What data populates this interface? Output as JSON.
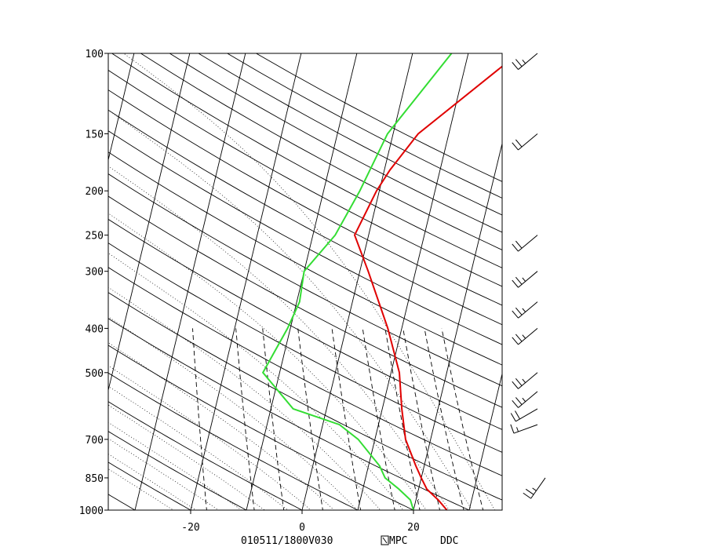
{
  "chart_data": {
    "type": "line",
    "title": "",
    "pressure_ticks": [
      "100",
      "150",
      "200",
      "250",
      "300",
      "400",
      "500",
      "700",
      "850",
      "1000"
    ],
    "pressure_levels": [
      100,
      150,
      200,
      250,
      300,
      400,
      500,
      700,
      850,
      1000
    ],
    "temp_ticks": [
      "-20",
      "0",
      "20"
    ],
    "temp_tick_values": [
      -20,
      0,
      20
    ],
    "xlim": [
      -34,
      36
    ],
    "ylim": [
      1000,
      100
    ],
    "footer": {
      "time": "010511/1800V030",
      "source": "MPC",
      "station": "DDC"
    },
    "series": [
      {
        "key": "temperature",
        "color": "#e00000",
        "p": [
          1000,
          950,
          900,
          850,
          800,
          700,
          600,
          500,
          400,
          300,
          250,
          200,
          180,
          150,
          100
        ],
        "t": [
          26,
          24,
          21.5,
          20,
          18.5,
          15.5,
          13.5,
          11.5,
          7.5,
          1.5,
          -2.5,
          -0.5,
          1,
          4.5,
          19
        ]
      },
      {
        "key": "dewpoint",
        "color": "#33dd33",
        "p": [
          1000,
          950,
          900,
          850,
          800,
          700,
          650,
          600,
          500,
          400,
          350,
          300,
          250,
          200,
          150,
          100
        ],
        "t": [
          20,
          19,
          16.5,
          13.5,
          12,
          7,
          3,
          -6,
          -13,
          -10.5,
          -9.5,
          -10,
          -6,
          -3.5,
          -1,
          7
        ]
      }
    ],
    "wind_barbs": [
      {
        "p": 100,
        "dir": 230,
        "kt": 25
      },
      {
        "p": 150,
        "dir": 230,
        "kt": 20
      },
      {
        "p": 250,
        "dir": 230,
        "kt": 20
      },
      {
        "p": 300,
        "dir": 230,
        "kt": 25
      },
      {
        "p": 350,
        "dir": 230,
        "kt": 25
      },
      {
        "p": 400,
        "dir": 230,
        "kt": 25
      },
      {
        "p": 500,
        "dir": 230,
        "kt": 25
      },
      {
        "p": 550,
        "dir": 230,
        "kt": 25
      },
      {
        "p": 600,
        "dir": 240,
        "kt": 20
      },
      {
        "p": 650,
        "dir": 250,
        "kt": 15
      },
      {
        "p": 850,
        "dir": 215,
        "kt": 25
      }
    ]
  }
}
